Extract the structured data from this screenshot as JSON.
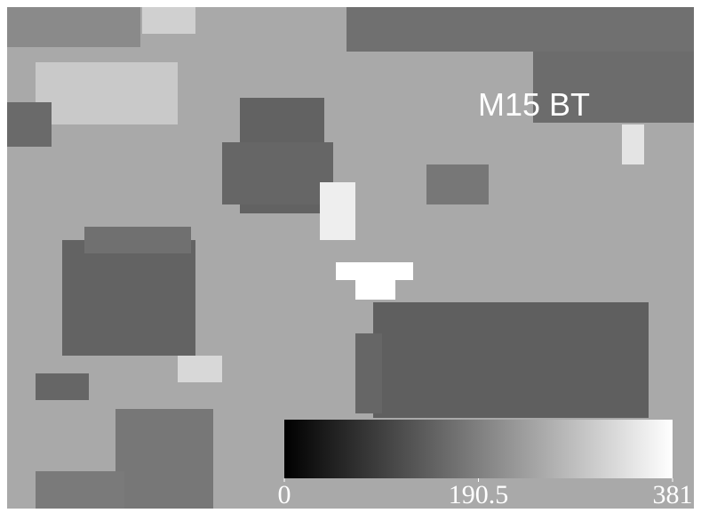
{
  "label": "M15 BT",
  "colorbar": {
    "range": [
      0,
      381
    ],
    "ticks": [
      0,
      190.5,
      381
    ]
  }
}
